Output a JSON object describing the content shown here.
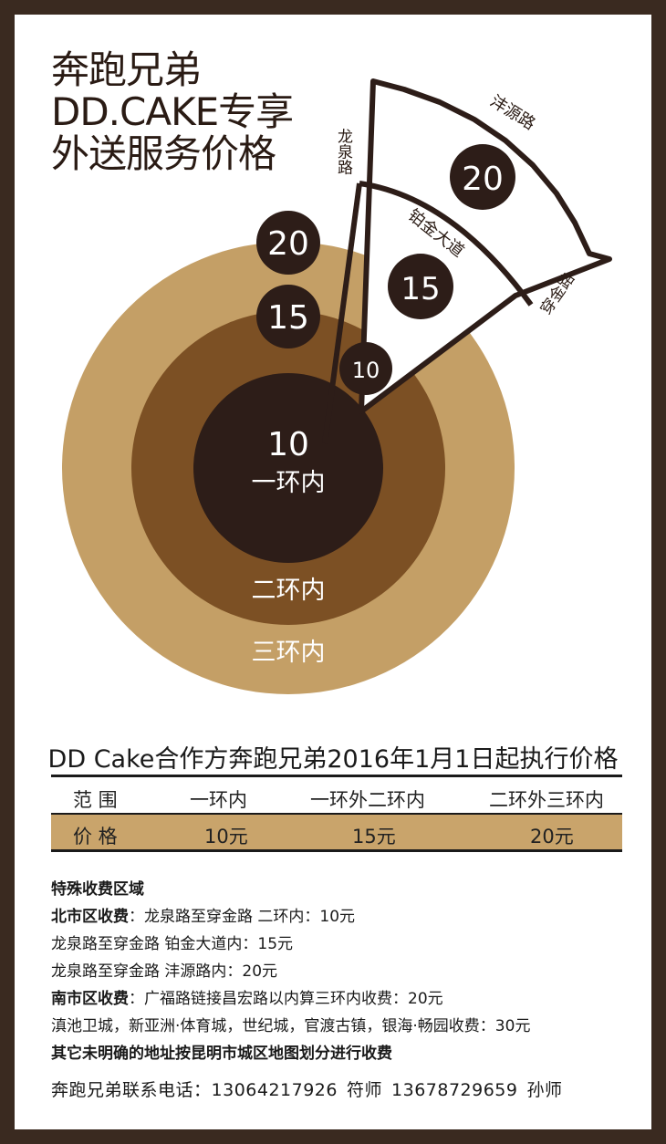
{
  "title_lines": [
    "奔跑兄弟",
    "DD.CAKE专享",
    "外送服务价格"
  ],
  "rings": {
    "inner": {
      "price": "10",
      "label": "一环内"
    },
    "middle": {
      "label": "二环内"
    },
    "outer": {
      "label": "三环内"
    },
    "outer_price": "20",
    "middle_price": "15"
  },
  "sector": {
    "road_longquan": "龙泉路",
    "road_fengyuan": "沣源路",
    "road_bojin": "铂金大道",
    "road_chuanjin": "穿金路",
    "price_outer": "20",
    "price_middle": "15",
    "price_inner": "10"
  },
  "table": {
    "headline": "DD Cake合作方奔跑兄弟2016年1月1日起执行价格",
    "header": [
      "范 围",
      "一环内",
      "一环外二环内",
      "二环外三环内"
    ],
    "prices": [
      "价 格",
      "10元",
      "15元",
      "20元"
    ]
  },
  "notes": {
    "special_title": "特殊收费区域",
    "north_label": "北市区收费",
    "north_line1": "：龙泉路至穿金路 二环内：10元",
    "north_line2": "龙泉路至穿金路 铂金大道内：15元",
    "north_line3": "龙泉路至穿金路 沣源路内：20元",
    "south_label": "南市区收费",
    "south_line1": "：广福路链接昌宏路以内算三环内收费：20元",
    "south_line2": "滇池卫城，新亚洲·体育城，世纪城，官渡古镇，银海·畅园收费：30元",
    "other": "其它未明确的地址按昆明市城区地图划分进行收费"
  },
  "contact": {
    "label": "奔跑兄弟联系电话：",
    "phone1": "13064217926",
    "name1": "符师",
    "phone2": "13678729659",
    "name2": "孙师"
  },
  "colors": {
    "outer_ring": "#c49f66",
    "middle_ring": "#7c5024",
    "inner_ring": "#2d1d18",
    "badge": "#2d1d18",
    "frame": "#3a2a20",
    "table_band": "#c9a46b"
  }
}
